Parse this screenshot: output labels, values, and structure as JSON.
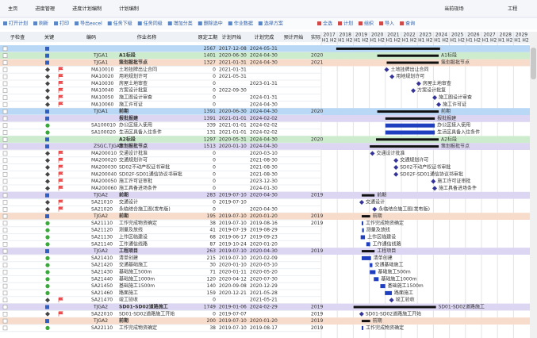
{
  "tabs": [
    "主页",
    "进度管理",
    "进度计划编制",
    "计划编制"
  ],
  "site_label": "当前现场",
  "site_value": "工程",
  "toolbar_left": [
    "打开计划",
    "刷新",
    "打印",
    "导出excel",
    "任务下级",
    "任务同级",
    "增加分类",
    "删除选中",
    "作业数据",
    "选择方案"
  ],
  "toolbar_right": [
    "全选",
    "计划",
    "组织",
    "导入",
    "查询"
  ],
  "columns": [
    "子检查",
    "关键",
    "编码",
    "作业名称",
    "原定工期",
    "计划开始",
    "计划完成",
    "预计开始",
    "实际"
  ],
  "gantt": {
    "years": [
      "2017",
      "2018",
      "2019",
      "2020",
      "2021",
      "2022",
      "2023",
      "2024",
      "2025",
      "2026",
      "2027",
      "2028",
      "2029"
    ],
    "halves": [
      "H1",
      "H2"
    ],
    "first_year": 2017,
    "summary_color": "#111111",
    "task_color": "#1f3fbf",
    "milestone_color": "#333399"
  },
  "rows": [
    {
      "name": "",
      "duration": "2567",
      "start": "2017-12-08",
      "end": "2024-05-31",
      "bg": "#b9d8f5",
      "summary": true
    },
    {
      "code": "TJGA1",
      "name": "A1标段",
      "duration": "1401",
      "start": "2020-06-30",
      "end": "2024-04-30",
      "baseline": "2020",
      "bg": "#cdeccd",
      "summary": true
    },
    {
      "code": "TJGA1",
      "name": "策划报批节点",
      "duration": "1327",
      "start": "2021-01-31",
      "end": "2024-04-30",
      "baseline": "2021",
      "bg": "#f7dccb",
      "summary": true
    },
    {
      "code": "MA10010",
      "name": "土地挂牌出让合同",
      "duration": "0",
      "start": "2021-01-31"
    },
    {
      "code": "MA10020",
      "name": "用地规划许可",
      "duration": "0",
      "start": "2021-05-31"
    },
    {
      "code": "MA10030",
      "name": "房屋土地审查",
      "duration": "0",
      "end": "2023-01-31"
    },
    {
      "code": "MA10040",
      "name": "方案设计批复",
      "duration": "0",
      "start": "2022-09-30"
    },
    {
      "code": "MA10050",
      "name": "施工图设计审查",
      "duration": "0",
      "end": "2024-01-31"
    },
    {
      "code": "MA10060",
      "name": "施工许可证",
      "duration": "0",
      "end": "2024-04-30"
    },
    {
      "code": "TJGA1",
      "name": "前期",
      "duration": "1391",
      "start": "2020-06-30",
      "end": "2024-04-30",
      "baseline": "2020",
      "bg": "#b9d8f5",
      "summary": true
    },
    {
      "name": "报批报建",
      "duration": "1391",
      "start": "2021-01-01",
      "end": "2024-02-02",
      "bg": "#dcd6f2",
      "summary": true
    },
    {
      "code": "SA100010",
      "name": "办公区接入使用",
      "duration": "339",
      "start": "2021-01-01",
      "end": "2024-02-02"
    },
    {
      "code": "SA100020",
      "name": "生活区具备入住条件",
      "duration": "131",
      "start": "2021-01-01",
      "end": "2024-02-02"
    },
    {
      "name": "A2标段",
      "duration": "1297",
      "start": "2020-05-31",
      "end": "2024-04-30",
      "baseline": "2020",
      "bg": "#cdeccd",
      "summary": true
    },
    {
      "code": "ZSGC.TJGA2",
      "name": "策划报批节点",
      "duration": "1513",
      "start": "2020-01-10",
      "end": "2024-04-30",
      "bg": "#dcd6f2",
      "summary": true
    },
    {
      "code": "MA200010",
      "name": "交通设计批准",
      "duration": "0",
      "end": "2020-03-10"
    },
    {
      "code": "MA200020",
      "name": "交通规划许可",
      "duration": "0",
      "end": "2021-08-30"
    },
    {
      "code": "MA200030",
      "name": "SD02不动产权证书审批",
      "duration": "0",
      "end": "2021-08-30"
    },
    {
      "code": "MA200040",
      "name": "SD02F-SD01通信协议书审批",
      "duration": "0",
      "end": "2021-08-30"
    },
    {
      "code": "MA200050",
      "name": "施工许可证审批",
      "duration": "0",
      "end": "2023-12-30"
    },
    {
      "code": "MA200060",
      "name": "施工具备进场条件",
      "duration": "0",
      "end": "2024-01-30"
    },
    {
      "code": "TJGA2",
      "name": "前期",
      "duration": "283",
      "start": "2019-07-10",
      "end": "2020-04-30",
      "baseline": "2019",
      "bg": "#dcd6f2",
      "summary": true
    },
    {
      "code": "SA21010",
      "name": "交通设计",
      "duration": "0",
      "start": "2019-07-10"
    },
    {
      "code": "SA21020",
      "name": "永临结合施工图(发布版)",
      "duration": "0",
      "end": "2020-04-30"
    },
    {
      "code": "TJGA2",
      "name": "前期",
      "duration": "195",
      "start": "2019-07-10",
      "end": "2020-01-20",
      "baseline": "2019",
      "bg": "#f7dccb",
      "summary": true
    },
    {
      "code": "SA21110",
      "name": "工作完成物资确定",
      "duration": "38",
      "start": "2019-07-10",
      "end": "2019-08-16",
      "baseline": "2019"
    },
    {
      "code": "SA21120",
      "name": "测量及放线",
      "duration": "41",
      "start": "2019-07-19",
      "end": "2019-08-29"
    },
    {
      "code": "SA21130",
      "name": "上作区临建设",
      "duration": "68",
      "start": "2019-06-17",
      "end": "2019-09-23"
    },
    {
      "code": "SA21140",
      "name": "工作通信线路",
      "duration": "87",
      "start": "2019-10-24",
      "end": "2020-01-20"
    },
    {
      "code": "TJGA2",
      "name": "工程项目",
      "duration": "263",
      "start": "2019-07-10",
      "end": "2020-04-30",
      "baseline": "2019",
      "bg": "#dcd6f2",
      "summary": true
    },
    {
      "code": "SA21410",
      "name": "清单创建",
      "duration": "215",
      "start": "2019-07-10",
      "end": "2020-02-09"
    },
    {
      "code": "SA21420",
      "name": "交通基础施工",
      "duration": "30",
      "start": "2020-01-10",
      "end": "2020-03-10"
    },
    {
      "code": "SA21430",
      "name": "基础施工500m",
      "duration": "71",
      "start": "2020-01-11",
      "end": "2020-05-20"
    },
    {
      "code": "SA21440",
      "name": "基础施工1000m",
      "duration": "120",
      "start": "2020-04-12",
      "end": "2020-07-30"
    },
    {
      "code": "SA21450",
      "name": "基础施工1500m",
      "duration": "140",
      "start": "2020-09-08",
      "end": "2020-12-29"
    },
    {
      "code": "SA21460",
      "name": "路面施工",
      "duration": "159",
      "start": "2020-12-21",
      "end": "2021-05-28"
    },
    {
      "code": "SA21470",
      "name": "竣工验收",
      "duration": "0",
      "end": "2021-05-21"
    },
    {
      "code": "TJGA2",
      "name": "SD01-SD02道路施工",
      "duration": "1749",
      "start": "2019-01-06",
      "end": "2024-02-29",
      "baseline": "2019",
      "bg": "#dcd6f2",
      "summary": true
    },
    {
      "code": "SA22010",
      "name": "SD01-SD02道路施工开始",
      "duration": "0",
      "start": "2019-07-07",
      "baseline": "2019"
    },
    {
      "code": "TJGA2",
      "name": "前期",
      "duration": "200",
      "start": "2019-07-10",
      "end": "2020-01-20",
      "baseline": "2019",
      "bg": "#f7dccb",
      "summary": true
    },
    {
      "code": "SA22110",
      "name": "工作完成物资确定",
      "duration": "38",
      "start": "2019-07-10",
      "end": "2019-08-17",
      "baseline": "2019"
    }
  ]
}
